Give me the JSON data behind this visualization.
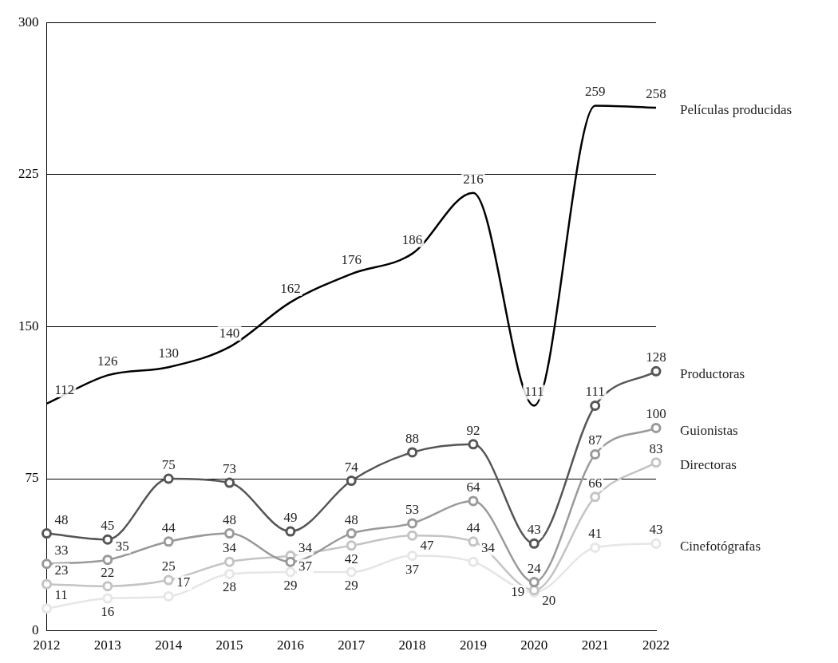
{
  "chart_data": {
    "type": "line",
    "categories": [
      "2012",
      "2013",
      "2014",
      "2015",
      "2016",
      "2017",
      "2018",
      "2019",
      "2020",
      "2021",
      "2022"
    ],
    "series": [
      {
        "name": "Películas producidas",
        "color": "#000000",
        "marker": "none",
        "values": [
          112,
          126,
          130,
          140,
          162,
          176,
          186,
          216,
          111,
          259,
          258
        ]
      },
      {
        "name": "Productoras",
        "color": "#555555",
        "values": [
          48,
          45,
          75,
          73,
          49,
          74,
          88,
          92,
          43,
          111,
          128
        ]
      },
      {
        "name": "Guionistas",
        "color": "#999999",
        "values": [
          33,
          35,
          44,
          48,
          34,
          48,
          53,
          64,
          24,
          87,
          100
        ]
      },
      {
        "name": "Directoras",
        "color": "#c4c4c4",
        "values": [
          23,
          22,
          25,
          34,
          37,
          42,
          47,
          44,
          20,
          66,
          83
        ]
      },
      {
        "name": "Cinefotógrafas",
        "color": "#e6e6e6",
        "values": [
          11,
          16,
          17,
          28,
          29,
          29,
          37,
          34,
          19,
          41,
          43
        ]
      }
    ],
    "ylim": [
      0,
      300
    ],
    "yticks": [
      0,
      75,
      150,
      225,
      300
    ],
    "grid": "y",
    "legend": false,
    "marker": "circle",
    "line_style": "solid",
    "data_labels": true
  }
}
